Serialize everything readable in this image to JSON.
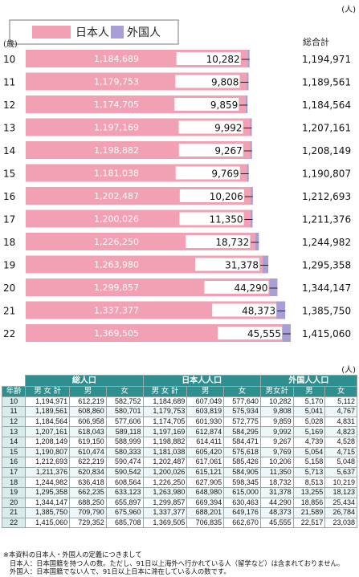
{
  "chart_data": {
    "type": "bar",
    "stacked": true,
    "orientation": "horizontal",
    "unit_label": "(人)",
    "yaxis_label": "(歳)",
    "total_header": "総合計",
    "categories": [
      "10",
      "11",
      "12",
      "13",
      "14",
      "15",
      "16",
      "17",
      "18",
      "19",
      "20",
      "21",
      "22"
    ],
    "series": [
      {
        "name": "日本人",
        "color": "#f2a0b4",
        "values": [
          1184689,
          1179753,
          1174705,
          1197169,
          1198882,
          1181038,
          1202487,
          1200026,
          1226250,
          1263980,
          1299857,
          1337377,
          1369505
        ],
        "labels": [
          "1,184,689",
          "1,179,753",
          "1,174,705",
          "1,197,169",
          "1,198,882",
          "1,181,038",
          "1,202,487",
          "1,200,026",
          "1,226,250",
          "1,263,980",
          "1,299,857",
          "1,337,377",
          "1,369,505"
        ]
      },
      {
        "name": "外国人",
        "color": "#a99fd6",
        "values": [
          10282,
          9808,
          9859,
          9992,
          9267,
          9769,
          10206,
          11350,
          18732,
          31378,
          44290,
          48373,
          45555
        ],
        "labels": [
          "10,282",
          "9,808",
          "9,859",
          "9,992",
          "9,267",
          "9,769",
          "10,206",
          "11,350",
          "18,732",
          "31,378",
          "44,290",
          "48,373",
          "45,555"
        ]
      }
    ],
    "totals": [
      "1,194,971",
      "1,189,561",
      "1,184,564",
      "1,207,161",
      "1,208,149",
      "1,190,807",
      "1,212,693",
      "1,211,376",
      "1,244,982",
      "1,295,358",
      "1,344,147",
      "1,385,750",
      "1,415,060"
    ],
    "legend": "top-left",
    "grid": false
  },
  "table": {
    "unit": "(人)",
    "groups": [
      "総人口",
      "日本人人口",
      "外国人人口"
    ],
    "age_header": "年齢",
    "sub_headers": [
      "男 女 計",
      "男",
      "女",
      "男 女 計",
      "男",
      "女",
      "男女計",
      "男",
      "女"
    ],
    "rows": [
      [
        "10",
        "1,194,971",
        "612,219",
        "582,752",
        "1,184,689",
        "607,049",
        "577,640",
        "10,282",
        "5,170",
        "5,112"
      ],
      [
        "11",
        "1,189,561",
        "608,860",
        "580,701",
        "1,179,753",
        "603,819",
        "575,934",
        "9,808",
        "5,041",
        "4,767"
      ],
      [
        "12",
        "1,184,564",
        "606,958",
        "577,606",
        "1,174,705",
        "601,930",
        "572,775",
        "9,859",
        "5,028",
        "4,831"
      ],
      [
        "13",
        "1,207,161",
        "618,043",
        "589,118",
        "1,197,169",
        "612,874",
        "584,295",
        "9,992",
        "5,169",
        "4,823"
      ],
      [
        "14",
        "1,208,149",
        "619,150",
        "588,999",
        "1,198,882",
        "614,411",
        "584,471",
        "9,267",
        "4,739",
        "4,528"
      ],
      [
        "15",
        "1,190,807",
        "610,474",
        "580,333",
        "1,181,038",
        "605,420",
        "575,618",
        "9,769",
        "5,054",
        "4,715"
      ],
      [
        "16",
        "1,212,693",
        "622,219",
        "590,474",
        "1,202,487",
        "617,061",
        "585,426",
        "10,206",
        "5,158",
        "5,048"
      ],
      [
        "17",
        "1,211,376",
        "620,834",
        "590,542",
        "1,200,026",
        "615,121",
        "584,905",
        "11,350",
        "5,713",
        "5,637"
      ],
      [
        "18",
        "1,244,982",
        "636,418",
        "608,564",
        "1,226,250",
        "627,905",
        "598,345",
        "18,732",
        "8,513",
        "10,219"
      ],
      [
        "19",
        "1,295,358",
        "662,235",
        "633,123",
        "1,263,980",
        "648,980",
        "615,000",
        "31,378",
        "13,255",
        "18,123"
      ],
      [
        "20",
        "1,344,147",
        "688,250",
        "655,897",
        "1,299,857",
        "669,394",
        "630,463",
        "44,290",
        "18,856",
        "25,434"
      ],
      [
        "21",
        "1,385,750",
        "709,790",
        "675,960",
        "1,337,377",
        "688,201",
        "649,176",
        "48,373",
        "21,589",
        "26,784"
      ],
      [
        "22",
        "1,415,060",
        "729,352",
        "685,708",
        "1,369,505",
        "706,835",
        "662,670",
        "45,555",
        "22,517",
        "23,038"
      ]
    ]
  },
  "notes": [
    "※本資料の日本人・外国人の定義につきまして",
    "日本人：日本国籍を持つ人の数。ただし、91日以上海外へ行かれている人（留学など）は含まれておりません。",
    "外国人：日本国籍でない人で、91日以上日本に滞在している人の数です。"
  ]
}
